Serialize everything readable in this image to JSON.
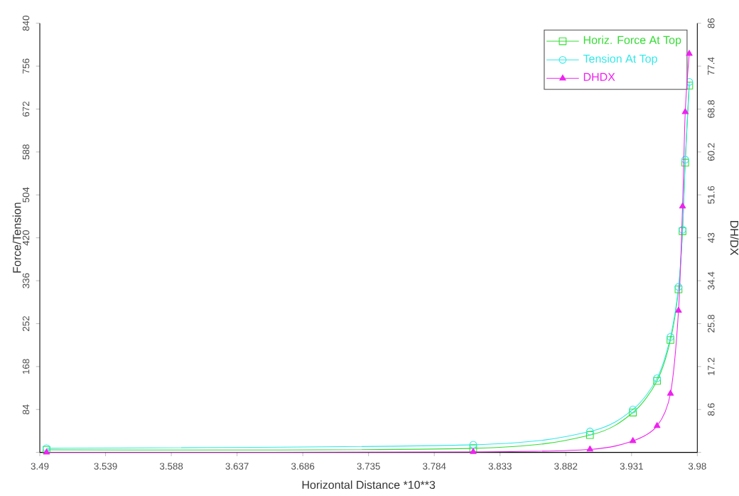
{
  "chart_data": {
    "type": "line",
    "xlabel": "Horizontal Distance *10**3",
    "ylabel": "Force/Tension",
    "y2label": "DH/DX",
    "x": [
      3.495,
      3.813,
      3.9,
      3.932,
      3.95,
      3.96,
      3.966,
      3.969,
      3.971,
      3.974
    ],
    "series": [
      {
        "name": "Horiz. Force At Top",
        "color": "#33dd33",
        "marker": "square",
        "values": [
          5,
          8,
          34,
          78,
          140,
          220,
          319,
          433,
          567,
          718
        ]
      },
      {
        "name": "Tension At Top",
        "color": "#33e8e8",
        "marker": "circle",
        "values": [
          8,
          15,
          41,
          84,
          145,
          226,
          324,
          436,
          573,
          725
        ]
      },
      {
        "name": "DHDX",
        "color": "#ee22ee",
        "marker": "triangle",
        "axis": "y2",
        "values": [
          0,
          0.1,
          0.6,
          2.3,
          5.3,
          11.8,
          28.4,
          49.3,
          68.2,
          79.9
        ]
      }
    ],
    "xlim": [
      3.49,
      3.98
    ],
    "xticks": [
      3.49,
      3.539,
      3.588,
      3.637,
      3.686,
      3.735,
      3.784,
      3.833,
      3.882,
      3.931,
      3.98
    ],
    "ylim": [
      0,
      840
    ],
    "yticks": [
      {
        "value": 0,
        "label": null
      },
      84,
      168,
      252,
      336,
      420,
      504,
      588,
      672,
      756,
      840
    ],
    "y2lim": [
      0,
      86
    ],
    "y2ticks": [
      {
        "value": 0,
        "label": null
      },
      8.6,
      17.2,
      25.8,
      34.4,
      43,
      51.6,
      60.2,
      68.8,
      77.4,
      86
    ],
    "grid": false,
    "legend": "top right",
    "line_style": "solid"
  }
}
